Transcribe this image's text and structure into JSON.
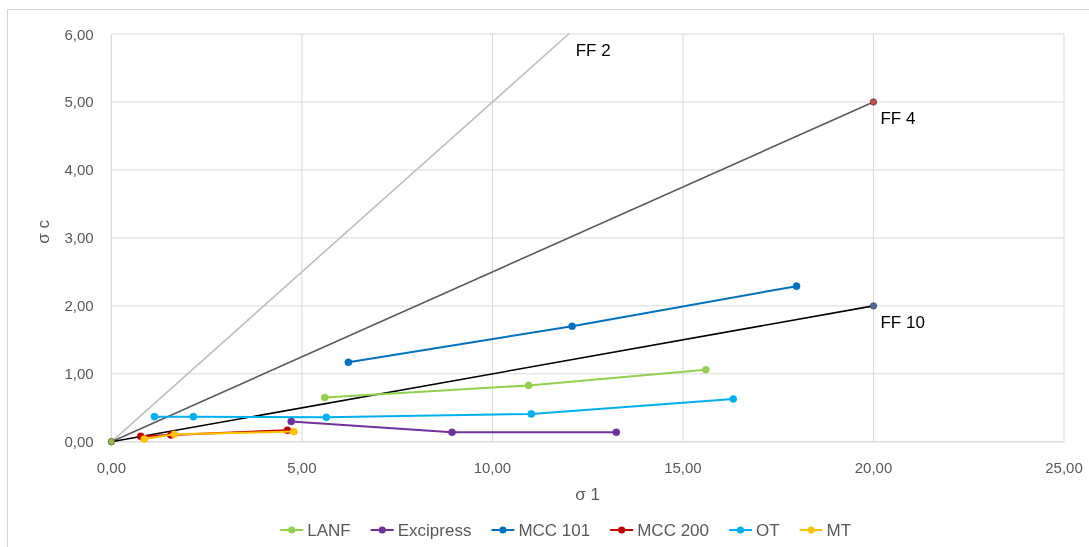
{
  "chart_data": {
    "type": "line",
    "xlabel": "σ 1",
    "ylabel": "σ c",
    "xlim": [
      0,
      25
    ],
    "ylim": [
      0,
      6
    ],
    "xticks": [
      {
        "value": 0,
        "label": "0,00"
      },
      {
        "value": 5,
        "label": "5,00"
      },
      {
        "value": 10,
        "label": "10,00"
      },
      {
        "value": 15,
        "label": "15,00"
      },
      {
        "value": 20,
        "label": "20,00"
      },
      {
        "value": 25,
        "label": "25,00"
      }
    ],
    "yticks": [
      {
        "value": 0,
        "label": "0,00"
      },
      {
        "value": 1,
        "label": "1,00"
      },
      {
        "value": 2,
        "label": "2,00"
      },
      {
        "value": 3,
        "label": "3,00"
      },
      {
        "value": 4,
        "label": "4,00"
      },
      {
        "value": 5,
        "label": "5,00"
      },
      {
        "value": 6,
        "label": "6,00"
      }
    ],
    "grid": true,
    "legend": "bottom",
    "marker": "circle",
    "series": [
      {
        "color": "#bfbfbf",
        "x": [
          0,
          12
        ],
        "values": [
          0,
          6
        ],
        "marker": "none"
      },
      {
        "color": "#595959",
        "colors": [
          "#9bbb59",
          "#c0504d"
        ],
        "x": [
          0,
          20
        ],
        "values": [
          0,
          5
        ]
      },
      {
        "color": "#000000",
        "colors": [
          "#9bbb59",
          "#4f6d9a"
        ],
        "x": [
          0,
          20
        ],
        "values": [
          0,
          2
        ]
      },
      {
        "name": "LANF",
        "color": "#92d050",
        "x": [
          5.6,
          10.95,
          15.6
        ],
        "values": [
          0.65,
          0.83,
          1.06
        ]
      },
      {
        "name": "Excipress",
        "color": "#7030a0",
        "x": [
          4.72,
          8.94,
          13.25
        ],
        "values": [
          0.3,
          0.14,
          0.14
        ]
      },
      {
        "name": "MCC 101",
        "color": "#0070c0",
        "x": [
          6.22,
          12.09,
          17.98
        ],
        "values": [
          1.17,
          1.7,
          2.29
        ]
      },
      {
        "name": "MCC 200",
        "color": "#c00000",
        "x": [
          0.77,
          1.56,
          4.62
        ],
        "values": [
          0.08,
          0.1,
          0.17
        ]
      },
      {
        "name": "OT",
        "color": "#00b0f0",
        "x": [
          1.13,
          2.15,
          5.64,
          11.02,
          16.32
        ],
        "values": [
          0.37,
          0.37,
          0.36,
          0.41,
          0.63
        ]
      },
      {
        "name": "MT",
        "color": "#ffc000",
        "x": [
          0.86,
          1.65,
          4.79
        ],
        "values": [
          0.04,
          0.11,
          0.15
        ]
      }
    ],
    "annotations": [
      "FF 2",
      "FF 4",
      "FF 10"
    ]
  }
}
